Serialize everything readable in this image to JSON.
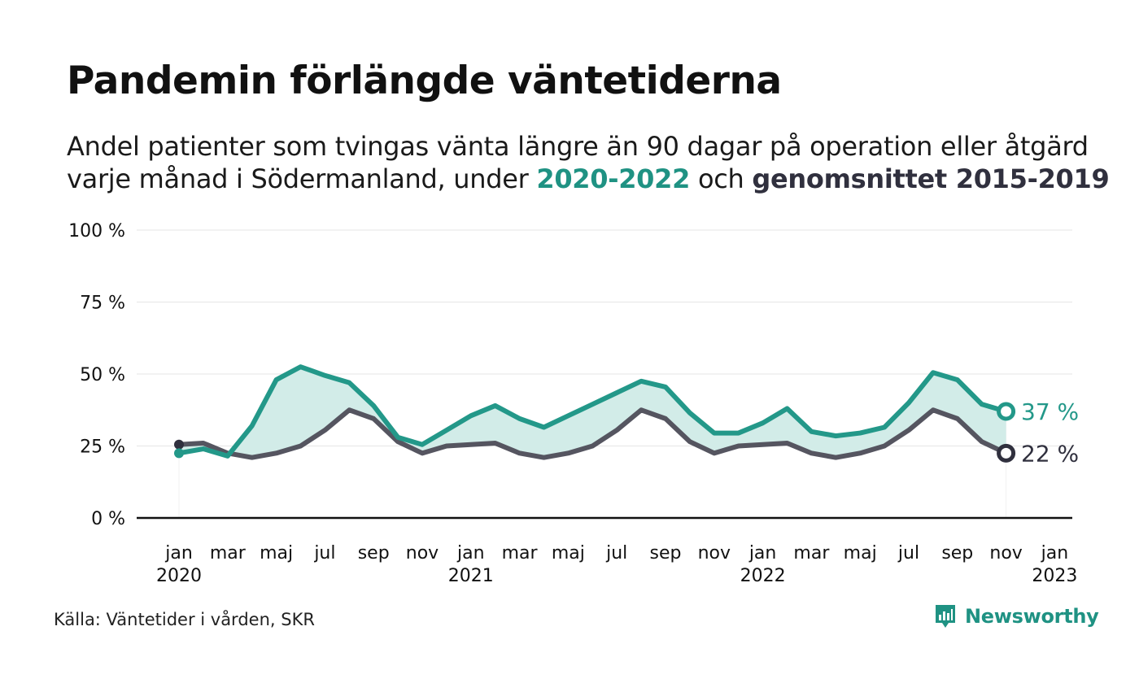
{
  "header": {
    "title": "Pandemin förlängde väntetiderna",
    "subtitle_line1": "Andel patienter som tvingas vänta längre än 90 dagar på operation eller åtgärd",
    "subtitle_line2_prefix": "varje månad i Södermanland, under ",
    "subtitle_highlight_1": "2020-2022",
    "subtitle_mid": " och ",
    "subtitle_highlight_2": "genomsnittet 2015-2019"
  },
  "footer": {
    "source": "Källa: Väntetider i vården, SKR",
    "brand": "Newsworthy"
  },
  "colors": {
    "series_2020_2022": "#239889",
    "series_avg": "#555560",
    "fill": "#d2ece8",
    "axis": "#111111",
    "grid": "#e6e6e6"
  },
  "chart_data": {
    "type": "line",
    "y_tick_labels": [
      "0 %",
      "25 %",
      "50 %",
      "75 %",
      "100 %"
    ],
    "y_ticks": [
      0,
      25,
      50,
      75,
      100
    ],
    "ylim": [
      0,
      100
    ],
    "x_tick_labels": [
      {
        "month": "jan",
        "year": "2020"
      },
      {
        "month": "mar",
        "year": ""
      },
      {
        "month": "maj",
        "year": ""
      },
      {
        "month": "jul",
        "year": ""
      },
      {
        "month": "sep",
        "year": ""
      },
      {
        "month": "nov",
        "year": ""
      },
      {
        "month": "jan",
        "year": "2021"
      },
      {
        "month": "mar",
        "year": ""
      },
      {
        "month": "maj",
        "year": ""
      },
      {
        "month": "jul",
        "year": ""
      },
      {
        "month": "sep",
        "year": ""
      },
      {
        "month": "nov",
        "year": ""
      },
      {
        "month": "jan",
        "year": "2022"
      },
      {
        "month": "mar",
        "year": ""
      },
      {
        "month": "maj",
        "year": ""
      },
      {
        "month": "jul",
        "year": ""
      },
      {
        "month": "sep",
        "year": ""
      },
      {
        "month": "nov",
        "year": ""
      },
      {
        "month": "jan",
        "year": "2023"
      }
    ],
    "x_start": "2020-01",
    "x_end": "2023-01",
    "series": [
      {
        "name": "2020-2022",
        "end_label": "37 %",
        "values": [
          22.5,
          24,
          21.5,
          32,
          48,
          52.5,
          49.5,
          47,
          39,
          28,
          25.5,
          30.5,
          35.5,
          39,
          34.5,
          31.5,
          35.5,
          39.5,
          43.5,
          47.5,
          45.5,
          36.5,
          29.5,
          29.5,
          33,
          38,
          30,
          28.5,
          29.5,
          31.5,
          40,
          50.5,
          48,
          39.5,
          37
        ]
      },
      {
        "name": "genomsnittet 2015-2019",
        "end_label": "22 %",
        "values": [
          25.5,
          26,
          22.5,
          21,
          22.5,
          25,
          30.5,
          37.5,
          34.5,
          26.5,
          22.5,
          25,
          25.5,
          26,
          22.5,
          21,
          22.5,
          25,
          30.5,
          37.5,
          34.5,
          26.5,
          22.5,
          25,
          25.5,
          26,
          22.5,
          21,
          22.5,
          25,
          30.5,
          37.5,
          34.5,
          26.5,
          22.5
        ]
      }
    ],
    "grid": true
  }
}
